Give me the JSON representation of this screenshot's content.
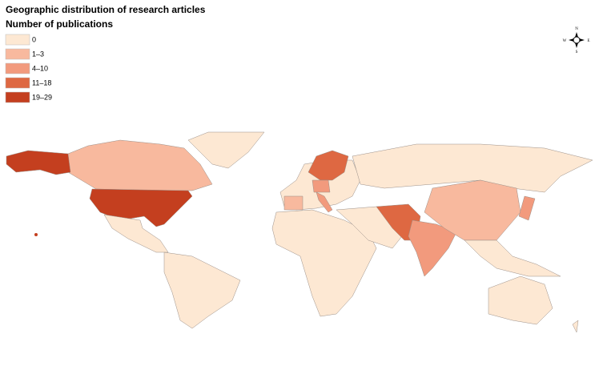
{
  "header": {
    "title": "Geographic distribution of research articles",
    "legend_title": "Number of publications"
  },
  "legend": [
    {
      "label": "0",
      "color": "#fde8d3"
    },
    {
      "label": "1–3",
      "color": "#f8b99e"
    },
    {
      "label": "4–10",
      "color": "#f29a7d"
    },
    {
      "label": "11–18",
      "color": "#de6842"
    },
    {
      "label": "19–29",
      "color": "#c43f1f"
    }
  ],
  "compass": {
    "north": "N",
    "south": "S",
    "east": "E",
    "west": "W"
  }
}
